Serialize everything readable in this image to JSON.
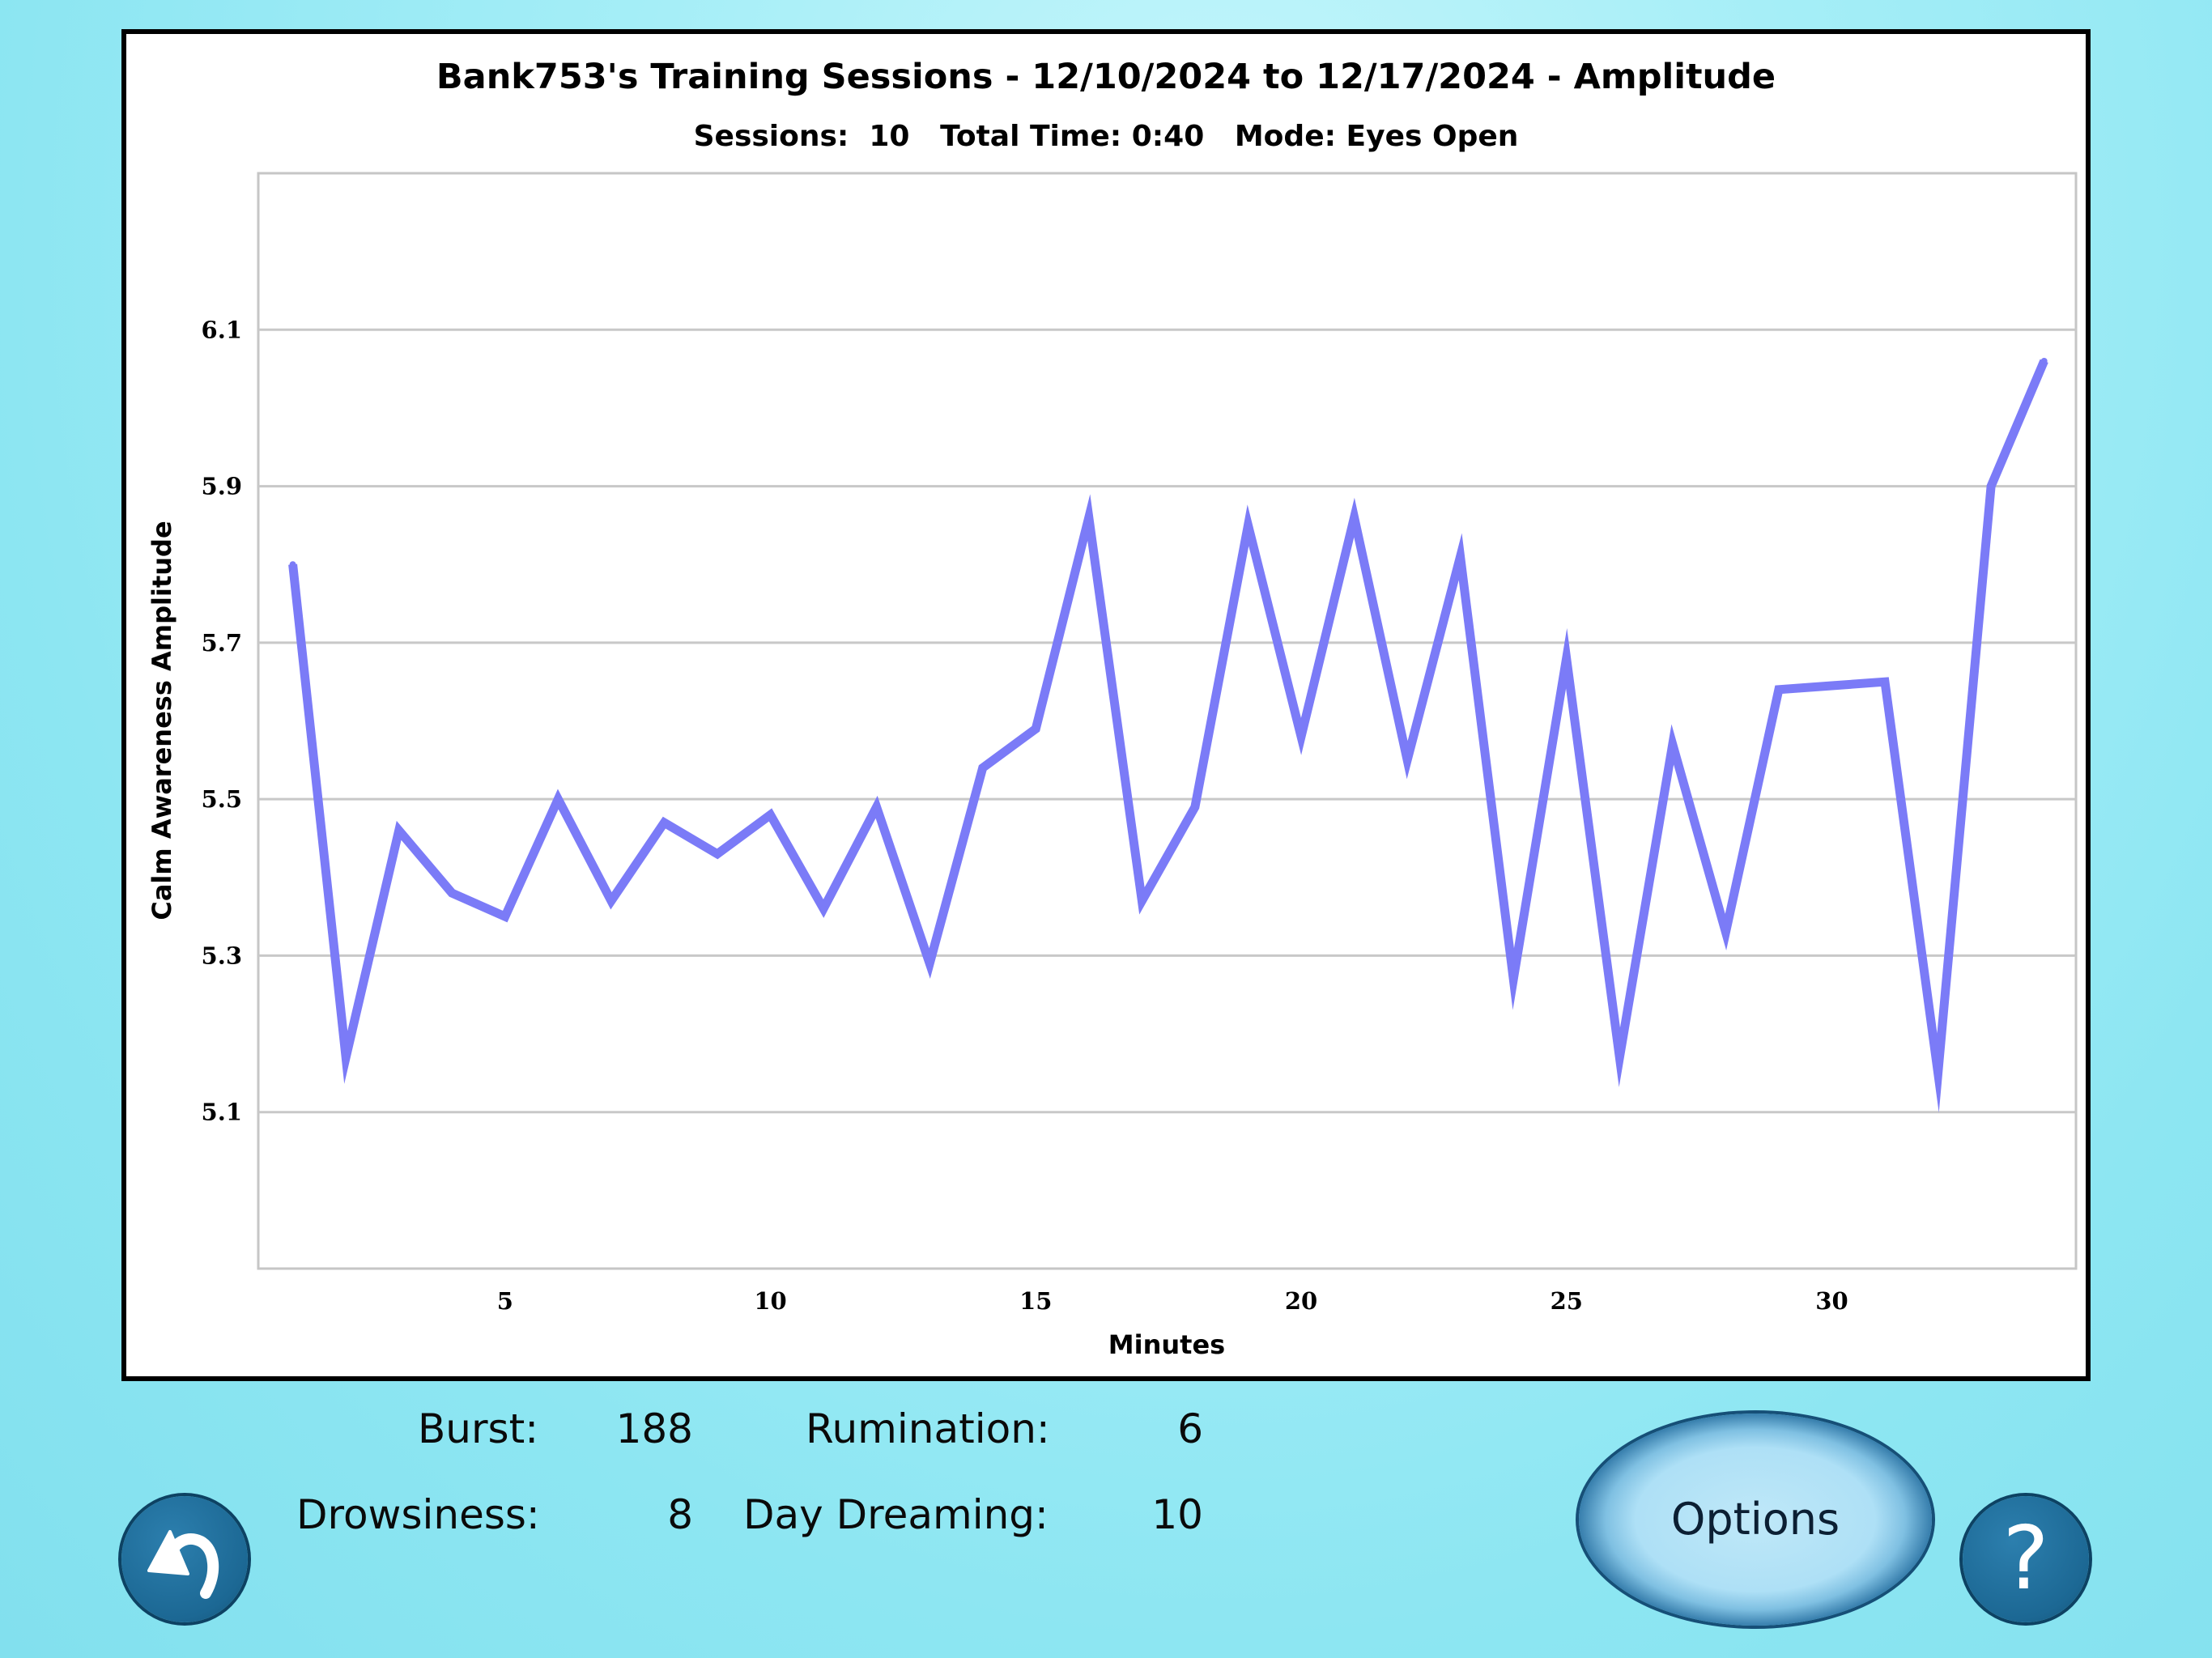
{
  "chart": {
    "title": "Bank753's Training Sessions - 12/10/2024 to 12/17/2024 - Amplitude",
    "subtitle": "Sessions:  10   Total Time: 0:40   Mode: Eyes Open"
  },
  "chart_data": {
    "type": "line",
    "title": "Bank753's Training Sessions - 12/10/2024 to 12/17/2024 - Amplitude",
    "subtitle": "Sessions:  10   Total Time: 0:40   Mode: Eyes Open",
    "xlabel": "Minutes",
    "ylabel": "Calm Awareness Amplitude",
    "xlim": [
      0.35,
      34.6
    ],
    "ylim": [
      4.9,
      6.3
    ],
    "x_ticks": [
      5,
      10,
      15,
      20,
      25,
      30
    ],
    "y_ticks": [
      5.1,
      5.3,
      5.5,
      5.7,
      5.9,
      6.1
    ],
    "grid": "horizontal",
    "line_color": "#7b7bf7",
    "series": [
      {
        "x": [
          1,
          2,
          3,
          4,
          5,
          6,
          7,
          8,
          9,
          10,
          11,
          12,
          13,
          14,
          15,
          16,
          17,
          18,
          19,
          20,
          21,
          22,
          23,
          24,
          25,
          26,
          27,
          28,
          29,
          30,
          31,
          32,
          33,
          34
        ],
        "values": [
          5.8,
          5.17,
          5.46,
          5.38,
          5.35,
          5.5,
          5.37,
          5.47,
          5.43,
          5.48,
          5.36,
          5.49,
          5.29,
          5.54,
          5.59,
          5.86,
          5.37,
          5.49,
          5.85,
          5.58,
          5.86,
          5.55,
          5.81,
          5.27,
          5.68,
          5.17,
          5.57,
          5.33,
          5.64,
          5.645,
          5.65,
          5.15,
          5.9,
          6.06
        ]
      }
    ]
  },
  "stats": {
    "burst_label": "Burst:",
    "burst_value": "188",
    "rumination_label": "Rumination:",
    "rumination_value": "6",
    "drowsiness_label": "Drowsiness:",
    "drowsiness_value": "8",
    "daydreaming_label": "Day Dreaming:",
    "daydreaming_value": "10"
  },
  "buttons": {
    "options_label": "Options",
    "help_label": "?",
    "back_icon": "back-arrow-icon"
  }
}
